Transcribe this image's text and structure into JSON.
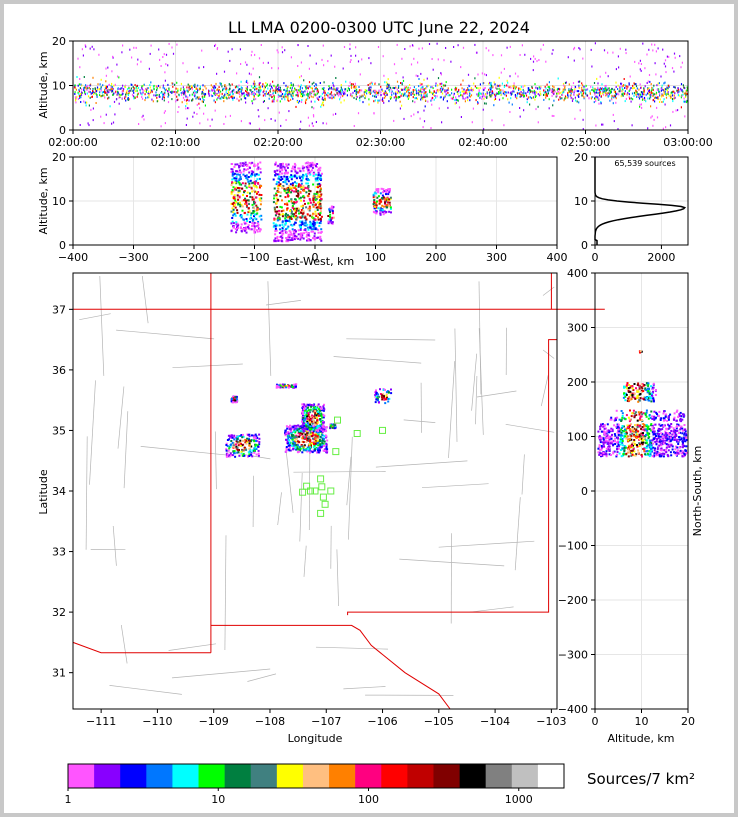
{
  "title": "LL LMA 0200-0300 UTC June 22, 2024",
  "colorbar_label": "Sources/7 km²",
  "source_count": "65,539 sources",
  "chart_data": [
    {
      "id": "time-altitude",
      "type": "heatmap",
      "ylabel": "Altitude, km",
      "xlabel": "",
      "ylim": [
        0,
        20
      ],
      "yticks": [
        "0",
        "10",
        "20"
      ],
      "xticks": [
        "02:00:00",
        "02:10:00",
        "02:20:00",
        "02:30:00",
        "02:40:00",
        "02:50:00",
        "03:00:00"
      ],
      "x_range": [
        "02:00:00",
        "03:00:00"
      ],
      "grid": true,
      "dense_band_km": [
        5,
        12
      ]
    },
    {
      "id": "ew-altitude",
      "type": "heatmap",
      "xlabel": "East-West, km",
      "ylabel": "Altitude, km",
      "xlim": [
        -400,
        400
      ],
      "ylim": [
        0,
        20
      ],
      "xticks": [
        "−400",
        "−300",
        "−200",
        "−100",
        "0",
        "100",
        "200",
        "300",
        "400"
      ],
      "yticks": [
        "0",
        "10",
        "20"
      ],
      "grid": true,
      "clusters": [
        {
          "x": [
            -140,
            -90
          ],
          "alt": [
            3,
            19
          ]
        },
        {
          "x": [
            -70,
            10
          ],
          "alt": [
            1,
            19
          ]
        },
        {
          "x": [
            20,
            30
          ],
          "alt": [
            5,
            9
          ]
        },
        {
          "x": [
            95,
            125
          ],
          "alt": [
            7,
            13
          ]
        }
      ]
    },
    {
      "id": "altitude-histogram",
      "type": "line",
      "xlim": [
        0,
        2800
      ],
      "ylim": [
        0,
        20
      ],
      "xticks": [
        "0",
        "2000"
      ],
      "yticks": [
        "0",
        "10",
        "20"
      ],
      "peak_altitude_km": 8.5,
      "peak_count": 2700
    },
    {
      "id": "plan-view",
      "type": "heatmap",
      "xlabel": "Longitude",
      "ylabel": "Latitude",
      "xlim": [
        -111.5,
        -102.9
      ],
      "ylim": [
        30.4,
        37.6
      ],
      "xticks": [
        "−111",
        "−110",
        "−109",
        "−108",
        "−107",
        "−106",
        "−105",
        "−104",
        "−103"
      ],
      "yticks": [
        "31",
        "32",
        "33",
        "34",
        "35",
        "36",
        "37"
      ],
      "grid": true,
      "stations": [
        {
          "lon": -107.35,
          "lat": 34.08
        },
        {
          "lon": -107.28,
          "lat": 34.0
        },
        {
          "lon": -107.42,
          "lat": 33.98
        },
        {
          "lon": -107.1,
          "lat": 34.2
        },
        {
          "lon": -107.08,
          "lat": 34.07
        },
        {
          "lon": -107.05,
          "lat": 33.9
        },
        {
          "lon": -107.02,
          "lat": 33.78
        },
        {
          "lon": -107.1,
          "lat": 33.63
        },
        {
          "lon": -106.92,
          "lat": 34.0
        },
        {
          "lon": -107.2,
          "lat": 34.0
        },
        {
          "lon": -106.83,
          "lat": 34.65
        },
        {
          "lon": -106.8,
          "lat": 35.17
        },
        {
          "lon": -106.45,
          "lat": 34.95
        },
        {
          "lon": -106.0,
          "lat": 35.0
        }
      ],
      "clusters": [
        {
          "lon": [
            -108.8,
            -108.2
          ],
          "lat": [
            34.58,
            34.95
          ]
        },
        {
          "lon": [
            -107.75,
            -107.0
          ],
          "lat": [
            34.65,
            35.1
          ]
        },
        {
          "lon": [
            -107.45,
            -107.05
          ],
          "lat": [
            35.0,
            35.45
          ]
        },
        {
          "lon": [
            -106.95,
            -106.85
          ],
          "lat": [
            35.05,
            35.12
          ]
        },
        {
          "lon": [
            -106.15,
            -105.85
          ],
          "lat": [
            35.45,
            35.7
          ]
        },
        {
          "lon": [
            -107.9,
            -107.55
          ],
          "lat": [
            35.72,
            35.78
          ]
        },
        {
          "lon": [
            -108.7,
            -108.6
          ],
          "lat": [
            35.48,
            35.58
          ]
        }
      ]
    },
    {
      "id": "ns-altitude",
      "type": "heatmap",
      "xlabel": "Altitude, km",
      "ylabel": "North-South, km",
      "xlim": [
        0,
        20
      ],
      "ylim": [
        -400,
        400
      ],
      "xticks": [
        "0",
        "10",
        "20"
      ],
      "yticks": [
        "400",
        "300",
        "200",
        "100",
        "0",
        "−100",
        "−200",
        "−300",
        "−400"
      ],
      "grid": true
    },
    {
      "id": "colorbar",
      "type": "bar",
      "scale": "log",
      "ticks": [
        "1",
        "10",
        "100",
        "1000"
      ],
      "colors": [
        "#ff55ff",
        "#8800ff",
        "#0000ff",
        "#0077ff",
        "#00ffff",
        "#00ff00",
        "#007f40",
        "#408080",
        "#ffff00",
        "#ffbf80",
        "#ff8000",
        "#ff0080",
        "#ff0000",
        "#c00000",
        "#800000",
        "#000000",
        "#808080",
        "#c0c0c0",
        "#ffffff"
      ]
    }
  ]
}
